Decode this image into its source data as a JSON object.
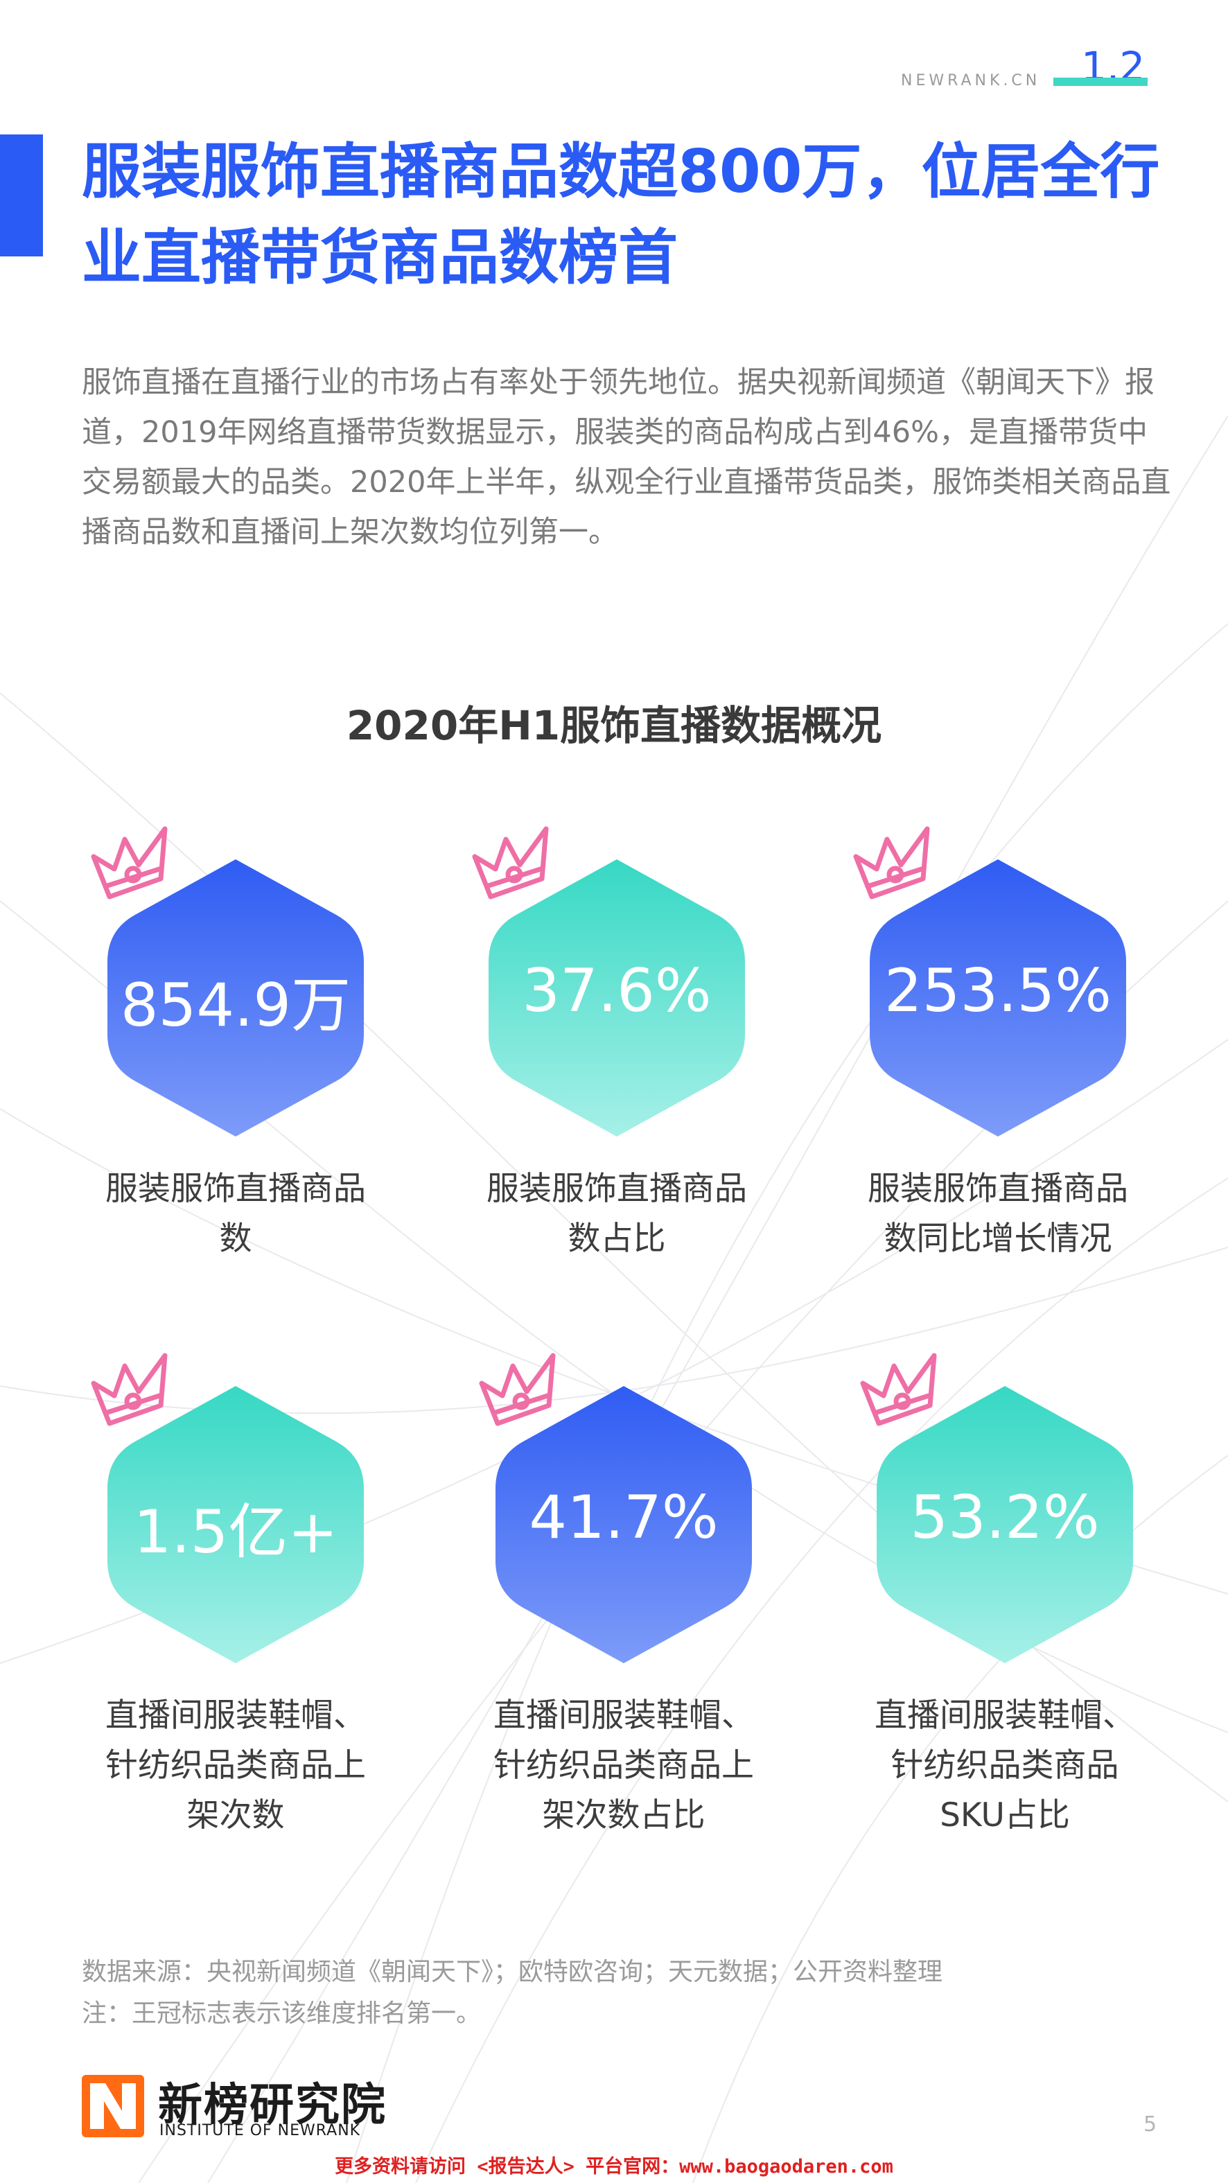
{
  "header": {
    "brand": "NEWRANK.CN",
    "page_code": "1.2",
    "accent": "#2a5bf5",
    "accent_teal": "#3fd7c6"
  },
  "title": "服装服饰直播商品数超800万，位居全行业直播带货商品数榜首",
  "intro": "服饰直播在直播行业的市场占有率处于领先地位。据央视新闻频道《朝闻天下》报道，2019年网络直播带货数据显示，服装类的商品构成占到46%，是直播带货中交易额最大的品类。2020年上半年，纵观全行业直播带货品类，服饰类相关商品直播商品数和直播间上架次数均位列第一。",
  "section_title": "2020年H1服饰直播数据概况",
  "stats": [
    {
      "value": "854.9万",
      "label": "服装服饰直播商品数",
      "color": "blue"
    },
    {
      "value": "37.6%",
      "label": "服装服饰直播商品数占比",
      "color": "teal"
    },
    {
      "value": "253.5%",
      "label": "服装服饰直播商品数同比增长情况",
      "color": "blue"
    },
    {
      "value": "1.5亿+",
      "label": "直播间服装鞋帽、针纺织品类商品上架次数",
      "color": "teal"
    },
    {
      "value": "41.7%",
      "label": "直播间服装鞋帽、针纺织品类商品上架次数占比",
      "color": "blue"
    },
    {
      "value": "53.2%",
      "label": "直播间服装鞋帽、针纺织品类商品SKU占比",
      "color": "teal"
    }
  ],
  "icons": {
    "crown": "crown-icon",
    "logo": "newrank-logo-icon"
  },
  "notes": {
    "source": "数据来源：央视新闻频道《朝闻天下》；欧特欧咨询；天元数据；公开资料整理",
    "note": "注：王冠标志表示该维度排名第一。"
  },
  "footer": {
    "logo_cn": "新榜研究院",
    "logo_en": "INSTITUTE OF NEWRANK",
    "page_number": "5",
    "link": "更多资料请访问 <报告达人> 平台官网：www.baogaodaren.com"
  }
}
